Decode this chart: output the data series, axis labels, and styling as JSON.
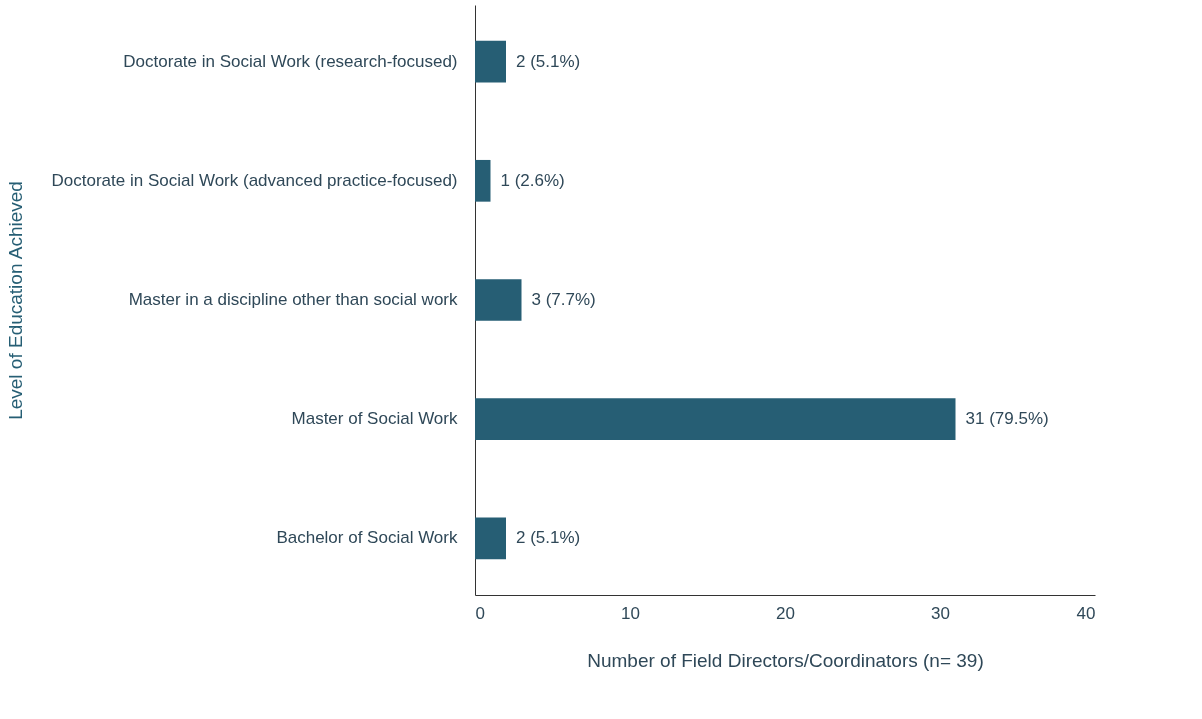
{
  "chart_data": {
    "type": "bar",
    "orientation": "horizontal",
    "categories": [
      "Doctorate in Social Work (research-focused)",
      "Doctorate in Social Work (advanced practice-focused)",
      "Master in a discipline other than social work",
      "Master of Social Work",
      "Bachelor of Social Work"
    ],
    "values": [
      2,
      1,
      3,
      31,
      2
    ],
    "value_labels": [
      "2 (5.1%)",
      "1 (2.6%)",
      "3 (7.7%)",
      "31 (79.5%)",
      "2 (5.1%)"
    ],
    "color": "#265e74",
    "xlabel": "Number of Field Directors/Coordinators (n= 39)",
    "ylabel": "Level of Education Achieved",
    "xlim": [
      0,
      40
    ],
    "xticks": [
      0,
      10,
      20,
      30,
      40
    ],
    "grid": false
  }
}
